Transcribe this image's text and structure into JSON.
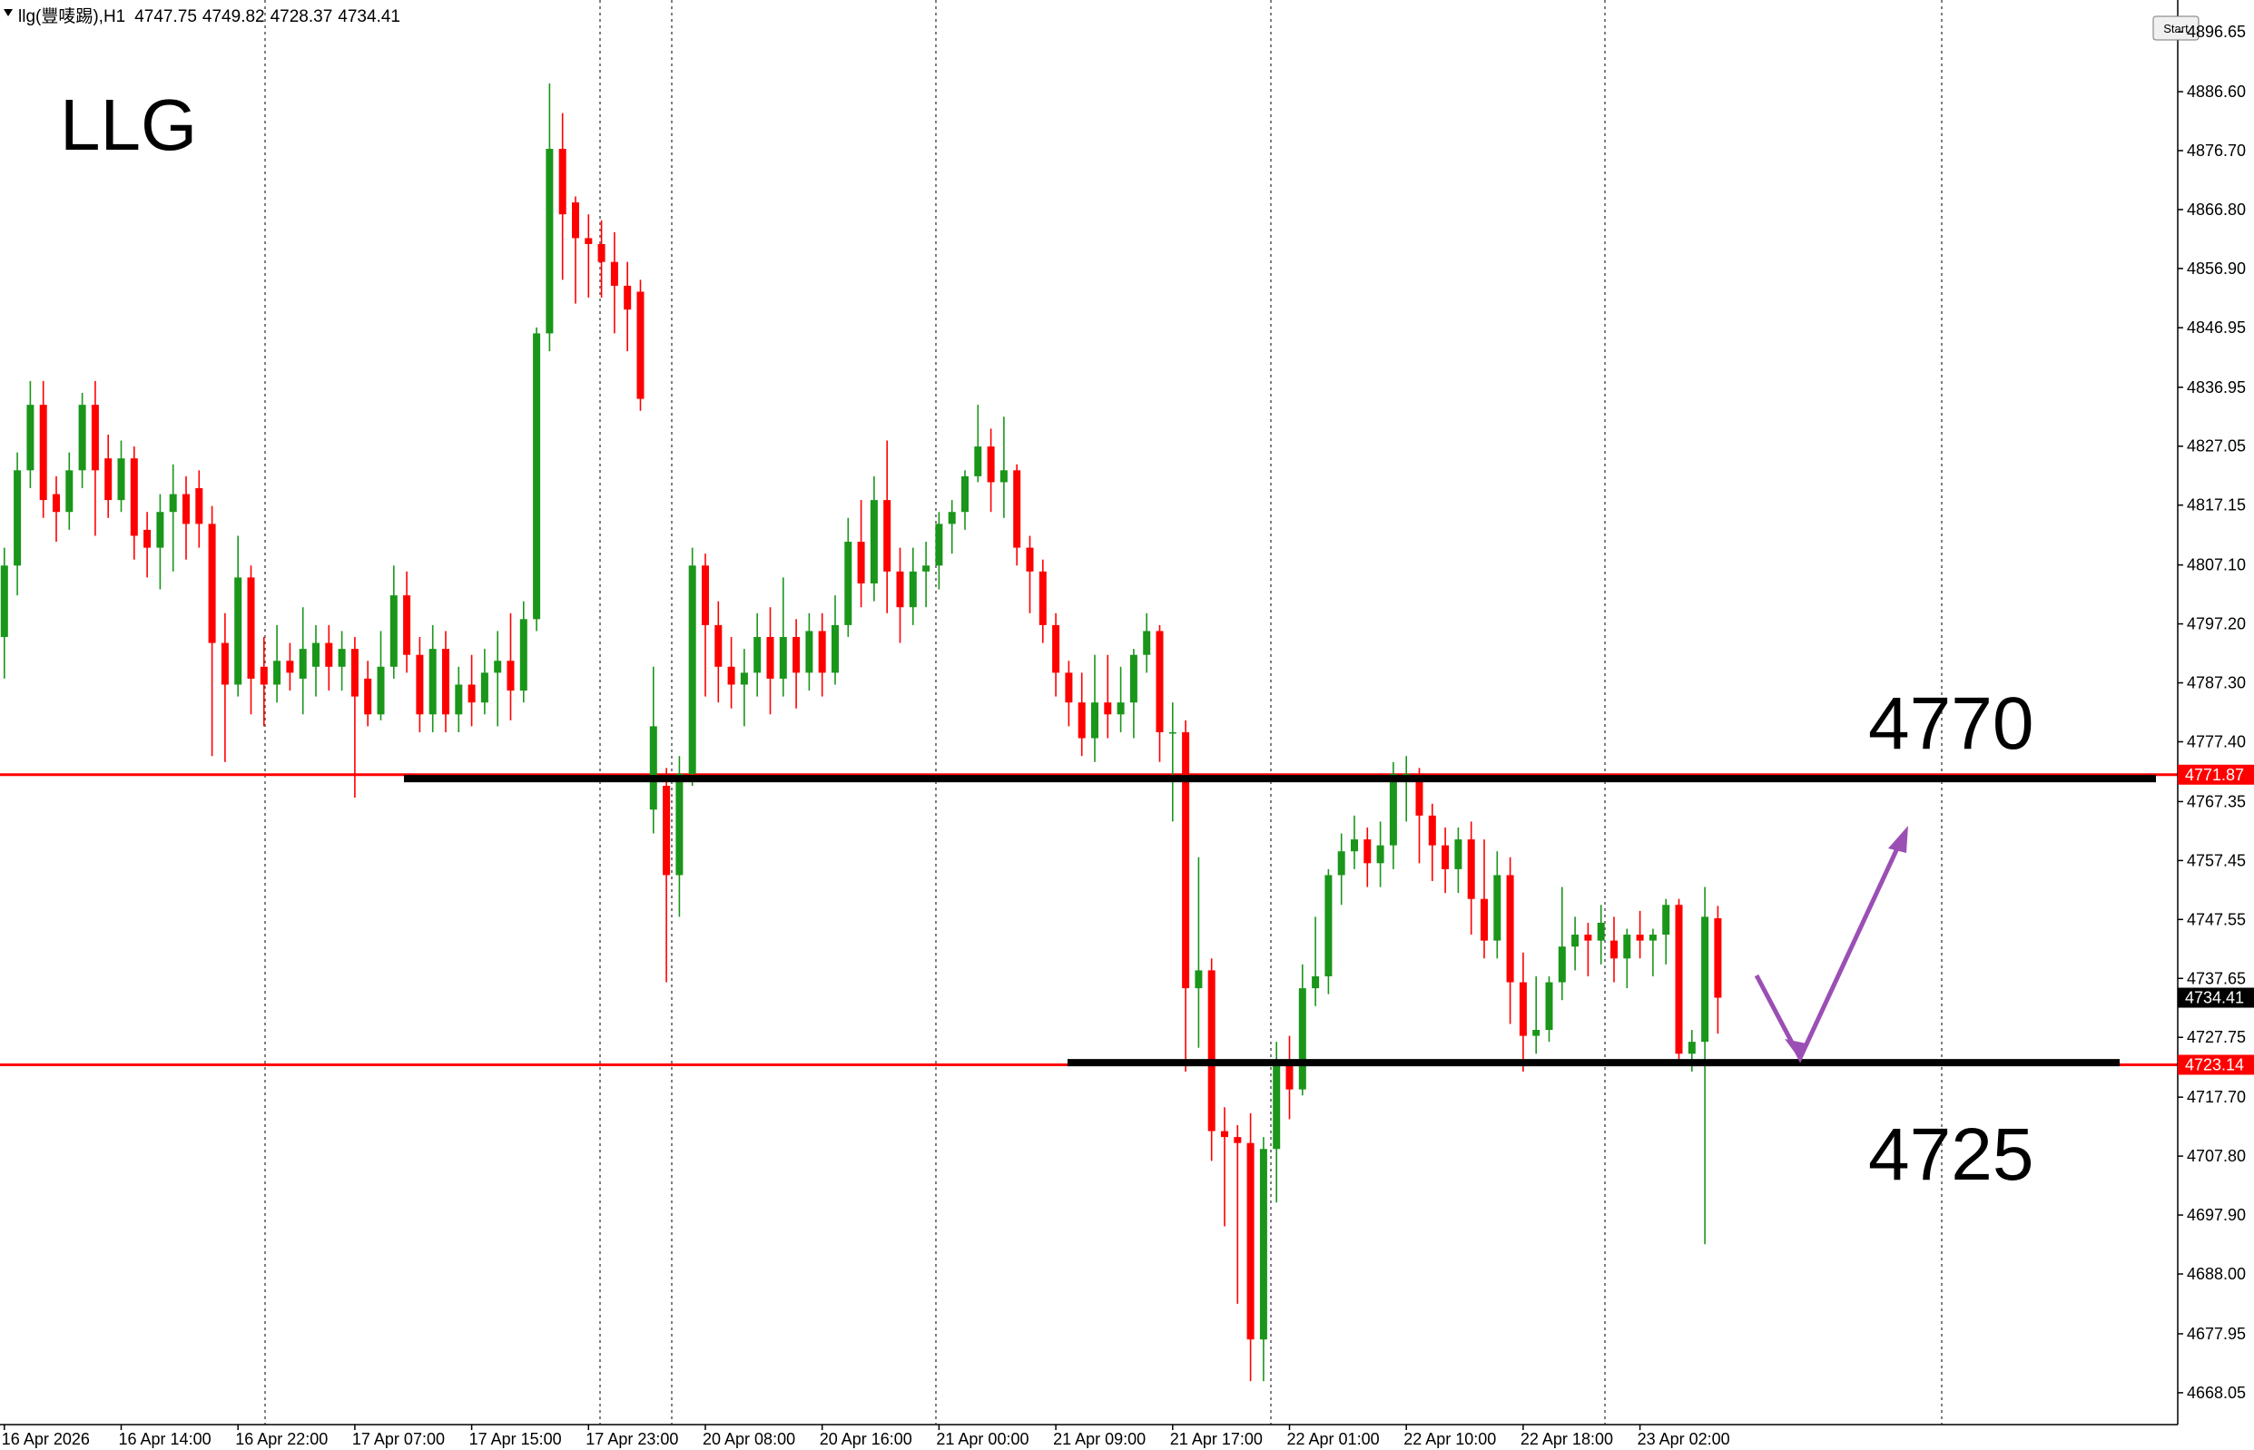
{
  "chart_data": {
    "type": "candlestick",
    "title": "llg(豐唛踢),H1",
    "annotation": "LLG",
    "level_annotations": [
      "4770",
      "4725"
    ],
    "start_button": "Start",
    "up_color": "#1a961a",
    "down_color": "#ff0000",
    "level_color": "#ff0000",
    "drawn_color": "#000000",
    "levels": [
      4771.87,
      4723.14
    ],
    "drawn_levels": [
      4771.2,
      4723.5
    ],
    "ylim": [
      4662.7,
      4902.0
    ],
    "yticks": [
      4896.65,
      {
        "value": 4886.6,
        "label": "4886.60"
      },
      {
        "value": 4876.7,
        "label": "4876.70"
      },
      {
        "value": 4866.8,
        "label": "4866.80"
      },
      {
        "value": 4856.9,
        "label": "4856.90"
      },
      4846.95,
      4836.95,
      4827.05,
      4817.15,
      {
        "value": 4807.1,
        "label": "4807.10"
      },
      {
        "value": 4797.2,
        "label": "4797.20"
      },
      {
        "value": 4787.3,
        "label": "4787.30"
      },
      {
        "value": 4777.4,
        "label": "4777.40"
      },
      4767.35,
      4757.45,
      4747.55,
      4737.65,
      4727.75,
      {
        "value": 4717.7,
        "label": "4717.70"
      },
      {
        "value": 4707.8,
        "label": "4707.80"
      },
      {
        "value": 4697.9,
        "label": "4697.90"
      },
      {
        "value": 4688.0,
        "label": "4688.00"
      },
      4677.95,
      4668.05
    ],
    "x": [
      "16 Apr 2026",
      null,
      null,
      null,
      null,
      null,
      null,
      null,
      null,
      "16 Apr 14:00",
      null,
      null,
      null,
      null,
      null,
      null,
      null,
      null,
      "16 Apr 22:00",
      null,
      null,
      null,
      null,
      null,
      null,
      null,
      null,
      "17 Apr 07:00",
      null,
      null,
      null,
      null,
      null,
      null,
      null,
      null,
      "17 Apr 15:00",
      null,
      null,
      null,
      null,
      null,
      null,
      null,
      null,
      "17 Apr 23:00",
      null,
      null,
      null,
      null,
      null,
      null,
      null,
      null,
      "20 Apr 08:00",
      null,
      null,
      null,
      null,
      null,
      null,
      null,
      null,
      "20 Apr 16:00",
      null,
      null,
      null,
      null,
      null,
      null,
      null,
      null,
      "21 Apr 00:00",
      null,
      null,
      null,
      null,
      null,
      null,
      null,
      null,
      "21 Apr 09:00",
      null,
      null,
      null,
      null,
      null,
      null,
      null,
      null,
      "21 Apr 17:00",
      null,
      null,
      null,
      null,
      null,
      null,
      null,
      null,
      "22 Apr 01:00",
      null,
      null,
      null,
      null,
      null,
      null,
      null,
      null,
      "22 Apr 10:00",
      null,
      null,
      null,
      null,
      null,
      null,
      null,
      null,
      "22 Apr 18:00",
      null,
      null,
      null,
      null,
      null,
      null,
      null,
      null,
      "23 Apr 02:00",
      null,
      null,
      null,
      null,
      null,
      null
    ],
    "open": [
      4795,
      4807,
      4823,
      4834,
      4819,
      4816,
      4823,
      4834,
      4825,
      4818,
      4825,
      4813,
      4810,
      4816,
      4819,
      4820,
      4814,
      4794,
      4787,
      4805,
      4790,
      4787,
      4791,
      4788,
      4790,
      4794,
      4790,
      4793,
      4788,
      4782,
      4790,
      4802,
      4792,
      4782,
      4793,
      4782,
      4787,
      4784,
      4789,
      4791,
      4786,
      4798,
      4846,
      4877,
      4868,
      4862,
      4861,
      4858,
      4854,
      4853,
      4766,
      4770,
      4755,
      4772,
      4807,
      4797,
      4790,
      4787,
      4789,
      4795,
      4788,
      4795,
      4789,
      4796,
      4789,
      4797,
      4811,
      4804,
      4818,
      4806,
      4800,
      4806,
      4807,
      4814,
      4816,
      4822,
      4827,
      4821,
      4823,
      4810,
      4806,
      4797,
      4789,
      4784,
      4778,
      4784,
      4782,
      4784,
      4792,
      4796,
      4779,
      4779,
      4736,
      4739,
      4712,
      4711,
      4710,
      4677,
      4709,
      4723,
      4719,
      4736,
      4738,
      4755,
      4759,
      4761,
      4757,
      4760,
      4772,
      4772,
      4765,
      4760,
      4756,
      4761,
      4751,
      4744,
      4755,
      4737,
      4728,
      4729,
      4737,
      4743,
      4745,
      4744,
      4744,
      4741,
      4745,
      4744,
      4745,
      4750,
      4725,
      4727,
      4747.75
    ],
    "high": [
      4810,
      4826,
      4838,
      4838,
      4822,
      4826,
      4836,
      4838,
      4829,
      4828,
      4827,
      4816,
      4819,
      4824,
      4822,
      4823,
      4817,
      4799,
      4812,
      4807,
      4795,
      4797,
      4794,
      4800,
      4797,
      4797,
      4796,
      4795,
      4791,
      4796,
      4807,
      4806,
      4795,
      4797,
      4796,
      4790,
      4792,
      4793,
      4796,
      4799,
      4801,
      4847,
      4888,
      4883,
      4869,
      4866,
      4865,
      4863,
      4858,
      4855,
      4790,
      4773,
      4775,
      4810,
      4809,
      4801,
      4795,
      4793,
      4799,
      4800,
      4805,
      4798,
      4799,
      4799,
      4802,
      4815,
      4818,
      4822,
      4828,
      4810,
      4810,
      4811,
      4816,
      4818,
      4823,
      4834,
      4830,
      4832,
      4824,
      4812,
      4808,
      4799,
      4791,
      4789,
      4792,
      4792,
      4790,
      4793,
      4799,
      4797,
      4784,
      4781,
      4758,
      4741,
      4716,
      4713,
      4715,
      4711,
      4727,
      4728,
      4740,
      4748,
      4756,
      4762,
      4765,
      4763,
      4764,
      4774,
      4775,
      4773,
      4767,
      4763,
      4763,
      4764,
      4761,
      4759,
      4758,
      4742,
      4738,
      4738,
      4753,
      4748,
      4747,
      4750,
      4748,
      4746,
      4749,
      4746,
      4751,
      4751,
      4729,
      4753,
      4749.82
    ],
    "low": [
      4788,
      4802,
      4820,
      4815,
      4811,
      4813,
      4820,
      4812,
      4815,
      4816,
      4808,
      4805,
      4803,
      4806,
      4808,
      4810,
      4775,
      4774,
      4785,
      4782,
      4780,
      4784,
      4786,
      4782,
      4785,
      4786,
      4786,
      4768,
      4780,
      4781,
      4788,
      4789,
      4779,
      4779,
      4779,
      4779,
      4780,
      4782,
      4780,
      4781,
      4784,
      4796,
      4843,
      4855,
      4851,
      4852,
      4852,
      4846,
      4843,
      4833,
      4762,
      4737,
      4748,
      4770,
      4785,
      4784,
      4783,
      4780,
      4785,
      4782,
      4785,
      4783,
      4786,
      4785,
      4787,
      4795,
      4800,
      4801,
      4799,
      4794,
      4797,
      4800,
      4803,
      4809,
      4813,
      4821,
      4816,
      4815,
      4807,
      4799,
      4794,
      4785,
      4780,
      4775,
      4774,
      4778,
      4779,
      4778,
      4789,
      4774,
      4764,
      4722,
      4726,
      4707,
      4696,
      4683,
      4670,
      4670,
      4700,
      4714,
      4718,
      4733,
      4735,
      4750,
      4756,
      4753,
      4753,
      4756,
      4764,
      4757,
      4754,
      4752,
      4752,
      4745,
      4741,
      4741,
      4730,
      4722,
      4725,
      4727,
      4734,
      4739,
      4738,
      4740,
      4737,
      4736,
      4741,
      4738,
      4740,
      4724,
      4722,
      4693,
      4728.37
    ],
    "close": [
      4807,
      4823,
      4834,
      4818,
      4816,
      4823,
      4834,
      4823,
      4818,
      4825,
      4812,
      4810,
      4816,
      4819,
      4814,
      4814,
      4794,
      4787,
      4805,
      4788,
      4787,
      4791,
      4789,
      4793,
      4794,
      4790,
      4793,
      4785,
      4782,
      4790,
      4802,
      4792,
      4782,
      4793,
      4782,
      4787,
      4784,
      4789,
      4791,
      4786,
      4798,
      4846,
      4877,
      4866,
      4862,
      4861,
      4858,
      4854,
      4850,
      4835,
      4780,
      4755,
      4772,
      4807,
      4797,
      4790,
      4787,
      4789,
      4795,
      4788,
      4795,
      4789,
      4796,
      4789,
      4797,
      4811,
      4804,
      4818,
      4806,
      4800,
      4806,
      4807,
      4814,
      4816,
      4822,
      4827,
      4821,
      4823,
      4810,
      4806,
      4797,
      4789,
      4784,
      4778,
      4784,
      4782,
      4784,
      4792,
      4796,
      4779,
      4779,
      4736,
      4739,
      4712,
      4711,
      4710,
      4677,
      4709,
      4723,
      4719,
      4736,
      4738,
      4755,
      4759,
      4761,
      4757,
      4760,
      4772,
      4772,
      4765,
      4760,
      4756,
      4761,
      4751,
      4744,
      4755,
      4737,
      4728,
      4729,
      4737,
      4743,
      4745,
      4744,
      4747,
      4741,
      4745,
      4744,
      4745,
      4750,
      4725,
      4727,
      4748,
      4734.41
    ]
  }
}
